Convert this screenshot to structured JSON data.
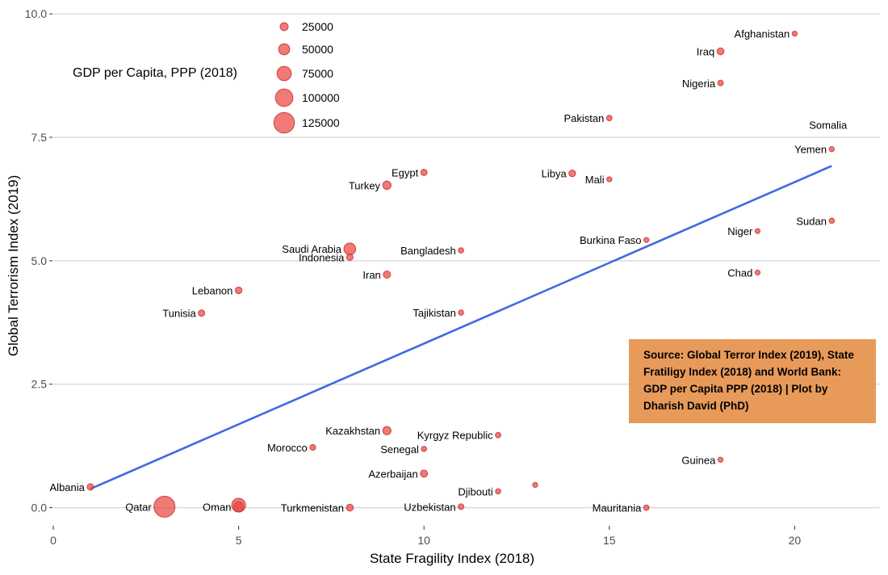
{
  "chart_data": {
    "type": "scatter",
    "xlabel": "State Fragility Index (2018)",
    "ylabel": "Global Terrorism Index (2019)",
    "xlim": [
      0,
      22.3
    ],
    "ylim": [
      -0.35,
      10.15
    ],
    "xticks": [
      "0",
      "5",
      "10",
      "15",
      "20"
    ],
    "yticks": [
      "0.0",
      "2.5",
      "5.0",
      "7.5",
      "10.0"
    ],
    "grid": true,
    "trendline": {
      "x": [
        1,
        21
      ],
      "y": [
        0.38,
        6.92
      ],
      "color": "#4169e1"
    },
    "size_legend": {
      "title": "GDP per Capita, PPP (2018)",
      "placement": "top-left",
      "entries": [
        "25000",
        "50000",
        "75000",
        "100000",
        "125000"
      ]
    },
    "points": [
      {
        "label": "Afghanistan",
        "x": 20,
        "y": 9.6,
        "gdp": 2000
      },
      {
        "label": "Iraq",
        "x": 18,
        "y": 9.24,
        "gdp": 17000
      },
      {
        "label": "Nigeria",
        "x": 18,
        "y": 8.6,
        "gdp": 6000
      },
      {
        "label": "Pakistan",
        "x": 15,
        "y": 7.89,
        "gdp": 5500
      },
      {
        "label": "Somalia",
        "x": 20.9,
        "y": 7.75,
        "gdp": 0
      },
      {
        "label": "Yemen",
        "x": 21,
        "y": 7.26,
        "gdp": 2500
      },
      {
        "label": "Egypt",
        "x": 10,
        "y": 6.79,
        "gdp": 12000
      },
      {
        "label": "Libya",
        "x": 14,
        "y": 6.77,
        "gdp": 15000
      },
      {
        "label": "Mali",
        "x": 15,
        "y": 6.65,
        "gdp": 2300
      },
      {
        "label": "Turkey",
        "x": 9,
        "y": 6.53,
        "gdp": 28000
      },
      {
        "label": "Sudan",
        "x": 21,
        "y": 5.81,
        "gdp": 4000
      },
      {
        "label": "Niger",
        "x": 19,
        "y": 5.6,
        "gdp": 1200
      },
      {
        "label": "Burkina Faso",
        "x": 16,
        "y": 5.42,
        "gdp": 2100
      },
      {
        "label": "Saudi Arabia",
        "x": 8,
        "y": 5.24,
        "gdp": 55000
      },
      {
        "label": "Bangladesh",
        "x": 11,
        "y": 5.21,
        "gdp": 4500
      },
      {
        "label": "Indonesia",
        "x": 8,
        "y": 5.07,
        "gdp": 12500
      },
      {
        "label": "Chad",
        "x": 19,
        "y": 4.76,
        "gdp": 2000
      },
      {
        "label": "Iran",
        "x": 9,
        "y": 4.72,
        "gdp": 19000
      },
      {
        "label": "Lebanon",
        "x": 5,
        "y": 4.4,
        "gdp": 15000
      },
      {
        "label": "Tajikistan",
        "x": 11,
        "y": 3.95,
        "gdp": 3500
      },
      {
        "label": "Tunisia",
        "x": 4,
        "y": 3.94,
        "gdp": 12000
      },
      {
        "label": "Kazakhstan",
        "x": 9,
        "y": 1.56,
        "gdp": 27000
      },
      {
        "label": "Kyrgyz Republic",
        "x": 12,
        "y": 1.47,
        "gdp": 5000
      },
      {
        "label": "Morocco",
        "x": 7,
        "y": 1.22,
        "gdp": 8000
      },
      {
        "label": "Senegal",
        "x": 10,
        "y": 1.19,
        "gdp": 3500
      },
      {
        "label": "Guinea",
        "x": 18,
        "y": 0.97,
        "gdp": 2600
      },
      {
        "label": "Azerbaijan",
        "x": 10,
        "y": 0.69,
        "gdp": 18000
      },
      {
        "label": "",
        "x": 13,
        "y": 0.46,
        "gdp": 2000
      },
      {
        "label": "Albania",
        "x": 1,
        "y": 0.42,
        "gdp": 13000
      },
      {
        "label": "Djibouti",
        "x": 12,
        "y": 0.33,
        "gdp": 3500
      },
      {
        "label": "Qatar",
        "x": 3,
        "y": 0.02,
        "gdp": 128000
      },
      {
        "label": "Oman",
        "x": 5,
        "y": 0.02,
        "gdp": 40000
      },
      {
        "label": "",
        "x": 5,
        "y": 0.05,
        "gdp": 71000
      },
      {
        "label": "Turkmenistan",
        "x": 8,
        "y": 0.0,
        "gdp": 17000
      },
      {
        "label": "Uzbekistan",
        "x": 11,
        "y": 0.02,
        "gdp": 7000
      },
      {
        "label": "Mauritania",
        "x": 16,
        "y": 0.0,
        "gdp": 5000
      }
    ],
    "annotation": "Source: Global Terror Index (2019), State Fratiligy Index (2018) and World Bank: GDP per Capita PPP (2018) | Plot by Dharish David (PhD)"
  }
}
